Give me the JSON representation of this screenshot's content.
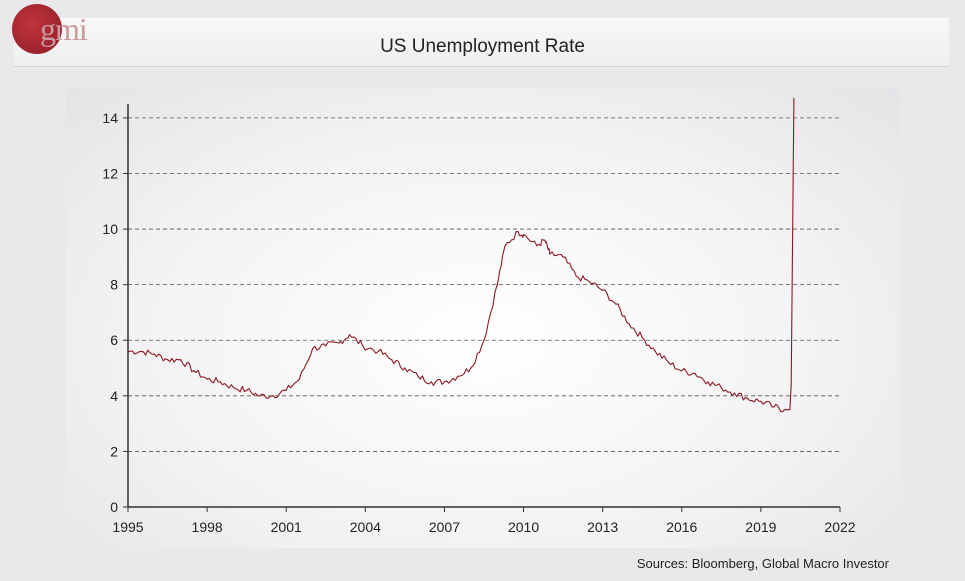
{
  "header": {
    "logo_text": "gmi",
    "title": "US Unemployment Rate"
  },
  "footer": {
    "source": "Sources: Bloomberg, Global Macro Investor"
  },
  "colors": {
    "line": "#8b1a22",
    "grid": "#555555",
    "axis": "#333333"
  },
  "chart_data": {
    "type": "line",
    "title": "US Unemployment Rate",
    "xlabel": "",
    "ylabel": "",
    "xlim": [
      1995,
      2022
    ],
    "ylim": [
      0,
      14.5
    ],
    "x_ticks": [
      "1995",
      "1998",
      "2001",
      "2004",
      "2007",
      "2010",
      "2013",
      "2016",
      "2019",
      "2022"
    ],
    "y_ticks": [
      "0",
      "2",
      "4",
      "6",
      "8",
      "10",
      "12",
      "14"
    ],
    "grid": "horizontal dashed",
    "series": [
      {
        "values": [
          [
            1995.0,
            5.6
          ],
          [
            1995.5,
            5.6
          ],
          [
            1996.0,
            5.5
          ],
          [
            1996.5,
            5.3
          ],
          [
            1997.0,
            5.3
          ],
          [
            1997.5,
            4.9
          ],
          [
            1998.0,
            4.6
          ],
          [
            1998.5,
            4.5
          ],
          [
            1999.0,
            4.3
          ],
          [
            1999.5,
            4.2
          ],
          [
            2000.0,
            4.0
          ],
          [
            2000.5,
            4.0
          ],
          [
            2001.0,
            4.2
          ],
          [
            2001.5,
            4.6
          ],
          [
            2002.0,
            5.7
          ],
          [
            2002.5,
            5.8
          ],
          [
            2003.0,
            5.9
          ],
          [
            2003.4,
            6.2
          ],
          [
            2003.9,
            5.8
          ],
          [
            2004.5,
            5.6
          ],
          [
            2005.0,
            5.3
          ],
          [
            2005.5,
            5.0
          ],
          [
            2006.0,
            4.7
          ],
          [
            2006.5,
            4.5
          ],
          [
            2007.0,
            4.5
          ],
          [
            2007.5,
            4.7
          ],
          [
            2008.0,
            5.0
          ],
          [
            2008.5,
            6.0
          ],
          [
            2009.0,
            8.0
          ],
          [
            2009.3,
            9.4
          ],
          [
            2009.8,
            9.9
          ],
          [
            2010.0,
            9.8
          ],
          [
            2010.5,
            9.4
          ],
          [
            2010.8,
            9.6
          ],
          [
            2011.0,
            9.1
          ],
          [
            2011.5,
            9.0
          ],
          [
            2012.0,
            8.3
          ],
          [
            2012.5,
            8.1
          ],
          [
            2013.0,
            7.8
          ],
          [
            2013.5,
            7.3
          ],
          [
            2014.0,
            6.6
          ],
          [
            2014.5,
            6.1
          ],
          [
            2015.0,
            5.6
          ],
          [
            2015.5,
            5.2
          ],
          [
            2016.0,
            4.9
          ],
          [
            2016.5,
            4.8
          ],
          [
            2017.0,
            4.5
          ],
          [
            2017.5,
            4.3
          ],
          [
            2018.0,
            4.1
          ],
          [
            2018.5,
            3.9
          ],
          [
            2019.0,
            3.8
          ],
          [
            2019.5,
            3.6
          ],
          [
            2019.9,
            3.5
          ],
          [
            2020.1,
            3.5
          ],
          [
            2020.15,
            4.4
          ],
          [
            2020.25,
            14.7
          ]
        ]
      }
    ]
  }
}
